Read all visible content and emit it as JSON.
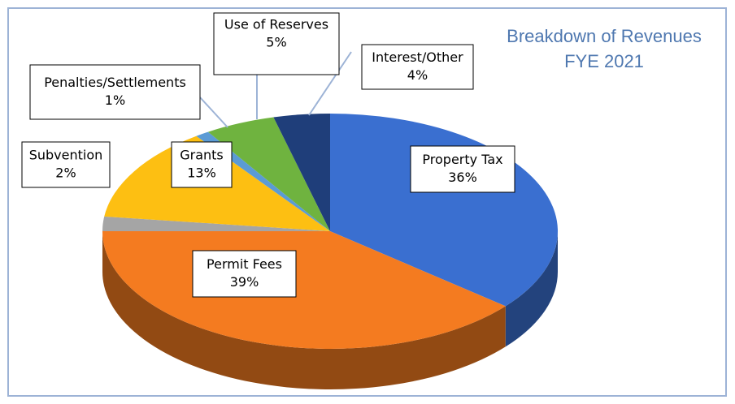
{
  "chart_data": {
    "type": "pie",
    "title": "Breakdown of Revenues",
    "subtitle": "FYE 2021",
    "categories": [
      "Property Tax",
      "Permit Fees",
      "Subvention",
      "Grants",
      "Penalties/Settlements",
      "Use of Reserves",
      "Interest/Other"
    ],
    "values": [
      36,
      39,
      2,
      13,
      1,
      5,
      4
    ],
    "value_labels": [
      "36%",
      "39%",
      "2%",
      "13%",
      "1%",
      "5%",
      "4%"
    ],
    "colors": [
      "#3a6fd0",
      "#f47b20",
      "#a5a5a5",
      "#fdbf12",
      "#5b9bd5",
      "#6fb33f",
      "#1f3e7a"
    ]
  }
}
